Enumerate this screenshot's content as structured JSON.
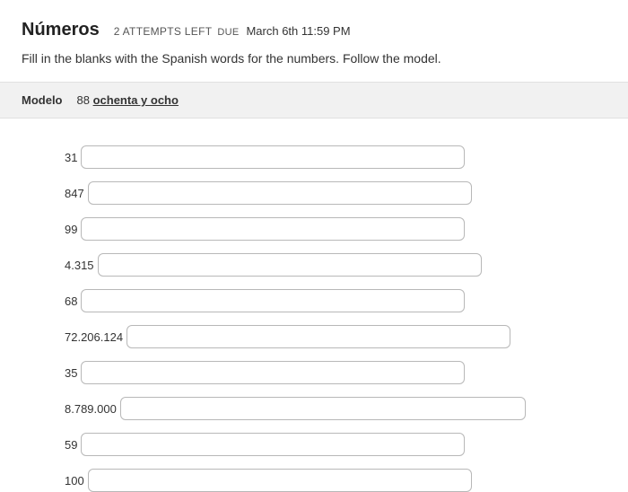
{
  "header": {
    "title": "Números",
    "attempts": "2 ATTEMPTS LEFT",
    "due_label": "DUE",
    "due_date": "March 6th 11:59 PM"
  },
  "instructions": "Fill in the blanks with the Spanish words for the numbers. Follow the model.",
  "modelo": {
    "label": "Modelo",
    "number": "88",
    "answer": "ochenta y ocho"
  },
  "questions": [
    {
      "label": "31",
      "input_width": 428
    },
    {
      "label": "847",
      "input_width": 428
    },
    {
      "label": "99",
      "input_width": 428
    },
    {
      "label": "4.315",
      "input_width": 428
    },
    {
      "label": "68",
      "input_width": 428
    },
    {
      "label": "72.206.124",
      "input_width": 428
    },
    {
      "label": "35",
      "input_width": 428
    },
    {
      "label": "8.789.000",
      "input_width": 452
    },
    {
      "label": "59",
      "input_width": 428
    },
    {
      "label": "100",
      "input_width": 428
    }
  ],
  "colors": {
    "text": "#333333",
    "title": "#222222",
    "bar_bg": "#f1f1f1",
    "border": "#e0e0e0",
    "input_border": "#b8b8b8",
    "bg": "#ffffff"
  }
}
